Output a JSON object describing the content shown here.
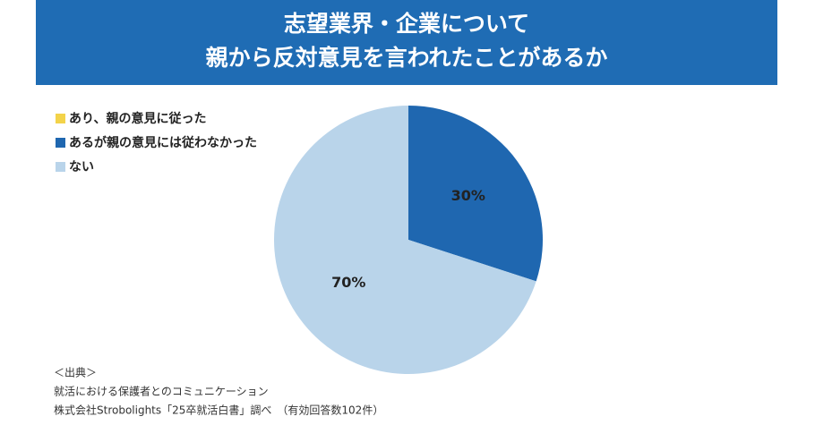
{
  "chart_data": {
    "type": "pie",
    "title": [
      "志望業界・企業について",
      "親から反対意見を言われたことがあるか"
    ],
    "categories": [
      "あり、親の意見に従った",
      "あるが親の意見には従わなかった",
      "ない"
    ],
    "values": [
      0,
      30,
      70
    ],
    "value_labels": [
      null,
      "30%",
      "70%"
    ],
    "colors": [
      "#f3d34a",
      "#1f67b0",
      "#b9d4ea"
    ],
    "legend": "top-left",
    "source": [
      "＜出典＞",
      "就活における保護者とのコミュニケーション",
      "株式会社Strobolights「25卒就活白書」調べ　（有効回答数102件）"
    ]
  }
}
